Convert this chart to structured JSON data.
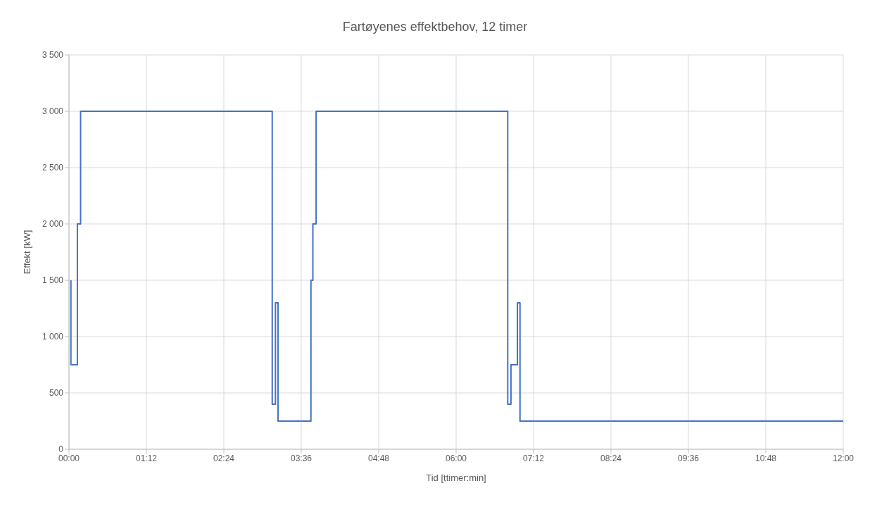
{
  "chart_data": {
    "type": "step",
    "title": "Fartøyenes effektbehov, 12 timer",
    "xlabel": "Tid [ttimer:min]",
    "ylabel": "Effekt [kW]",
    "x": [
      0.03,
      0.03,
      0.13,
      0.18,
      3.15,
      3.2,
      3.24,
      3.75,
      3.78,
      3.83,
      6.8,
      6.85,
      6.95,
      6.99,
      12
    ],
    "series": [
      {
        "color": "#4472c4",
        "values": [
          1500,
          750,
          2000,
          3000,
          400,
          1300,
          250,
          1500,
          2000,
          3000,
          400,
          750,
          1300,
          250,
          250
        ]
      }
    ],
    "xlim": [
      0,
      12
    ],
    "xticks": [
      {
        "value": 0,
        "label": "00:00"
      },
      {
        "value": 1.2,
        "label": "01:12"
      },
      {
        "value": 2.4,
        "label": "02:24"
      },
      {
        "value": 3.6,
        "label": "03:36"
      },
      {
        "value": 4.8,
        "label": "04:48"
      },
      {
        "value": 6,
        "label": "06:00"
      },
      {
        "value": 7.2,
        "label": "07:12"
      },
      {
        "value": 8.4,
        "label": "08:24"
      },
      {
        "value": 9.6,
        "label": "09:36"
      },
      {
        "value": 10.8,
        "label": "10:48"
      },
      {
        "value": 12,
        "label": "12:00"
      }
    ],
    "ylim": [
      0,
      3500
    ],
    "yticks": [
      0,
      {
        "value": 500,
        "label": "500"
      },
      {
        "value": 1000,
        "label": "1 000"
      },
      {
        "value": 1500,
        "label": "1 500"
      },
      {
        "value": 2000,
        "label": "2 000"
      },
      {
        "value": 2500,
        "label": "2 500"
      },
      {
        "value": 3000,
        "label": "3 000"
      },
      {
        "value": 3500,
        "label": "3 500"
      }
    ],
    "grid": true,
    "legend": false,
    "marker": "none",
    "line_style": "solid"
  }
}
